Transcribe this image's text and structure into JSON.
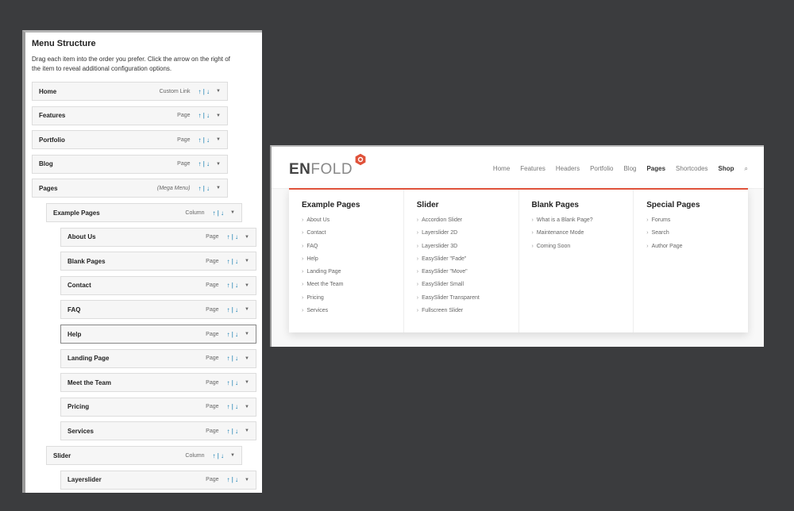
{
  "menu": {
    "title": "Menu Structure",
    "description": "Drag each item into the order you prefer. Click the arrow on the right of the item to reveal additional configuration options.",
    "items": [
      {
        "label": "Home",
        "type": "Custom Link",
        "level": 0
      },
      {
        "label": "Features",
        "type": "Page",
        "level": 0
      },
      {
        "label": "Portfolio",
        "type": "Page",
        "level": 0
      },
      {
        "label": "Blog",
        "type": "Page",
        "level": 0
      },
      {
        "label": "Pages",
        "type": "(Mega Menu)",
        "level": 0
      },
      {
        "label": "Example Pages",
        "type": "Column",
        "level": 1
      },
      {
        "label": "About Us",
        "type": "Page",
        "level": 2
      },
      {
        "label": "Blank Pages",
        "type": "Page",
        "level": 2
      },
      {
        "label": "Contact",
        "type": "Page",
        "level": 2
      },
      {
        "label": "FAQ",
        "type": "Page",
        "level": 2
      },
      {
        "label": "Help",
        "type": "Page",
        "level": 2,
        "selected": true
      },
      {
        "label": "Landing Page",
        "type": "Page",
        "level": 2
      },
      {
        "label": "Meet the Team",
        "type": "Page",
        "level": 2
      },
      {
        "label": "Pricing",
        "type": "Page",
        "level": 2
      },
      {
        "label": "Services",
        "type": "Page",
        "level": 2
      },
      {
        "label": "Slider",
        "type": "Column",
        "level": 1
      },
      {
        "label": "Layerslider",
        "type": "Page",
        "level": 2
      }
    ],
    "move_label": "↑ | ↓"
  },
  "site": {
    "logo": "ENFOLD",
    "accent": "#e0523a",
    "nav": [
      "Home",
      "Features",
      "Headers",
      "Portfolio",
      "Blog",
      "Pages",
      "Shortcodes",
      "Shop"
    ],
    "active": "Pages",
    "columns": [
      {
        "title": "Example Pages",
        "links": [
          "About Us",
          "Contact",
          "FAQ",
          "Help",
          "Landing Page",
          "Meet the Team",
          "Pricing",
          "Services"
        ]
      },
      {
        "title": "Slider",
        "links": [
          "Accordion Slider",
          "Layerslider 2D",
          "Layerslider 3D",
          "EasySlider \"Fade\"",
          "EasySlider \"Move\"",
          "EasySlider Small",
          "EasySlider Transparent",
          "Fullscreen Slider"
        ]
      },
      {
        "title": "Blank Pages",
        "links": [
          "What is a Blank Page?",
          "Maintenance Mode",
          "Coming Soon"
        ]
      },
      {
        "title": "Special Pages",
        "links": [
          "Forums",
          "Search",
          "Author Page"
        ]
      }
    ]
  }
}
